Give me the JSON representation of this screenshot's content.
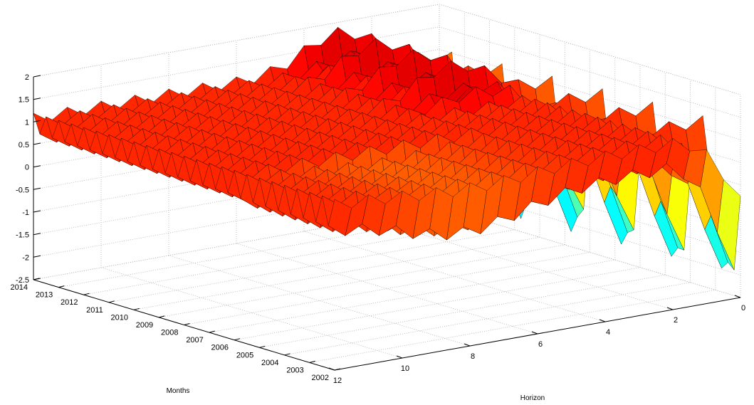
{
  "chart_data": {
    "type": "surface",
    "title": "",
    "xlabel": "Horizon",
    "ylabel": "Months",
    "zlabel": "",
    "zlim": [
      -2.5,
      2
    ],
    "z_ticks": [
      "-2.5",
      "-2",
      "-1.5",
      "-1",
      "-0.5",
      "0",
      "0.5",
      "1",
      "1.5",
      "2"
    ],
    "horizon_ticks": [
      "0",
      "2",
      "4",
      "6",
      "8",
      "10",
      "12"
    ],
    "horizon_range": [
      0,
      12
    ],
    "month_ticks": [
      "2002",
      "2003",
      "2004",
      "2005",
      "2006",
      "2007",
      "2008",
      "2009",
      "2010",
      "2011",
      "2012",
      "2013",
      "2014"
    ],
    "month_range": [
      2002,
      2014
    ],
    "colormap": "jet",
    "grid": true,
    "description_of_values": {
      "typical_surface_level": 0.8,
      "low_horizon_trough_min": -2.3,
      "ridge_max": 1.9
    }
  }
}
